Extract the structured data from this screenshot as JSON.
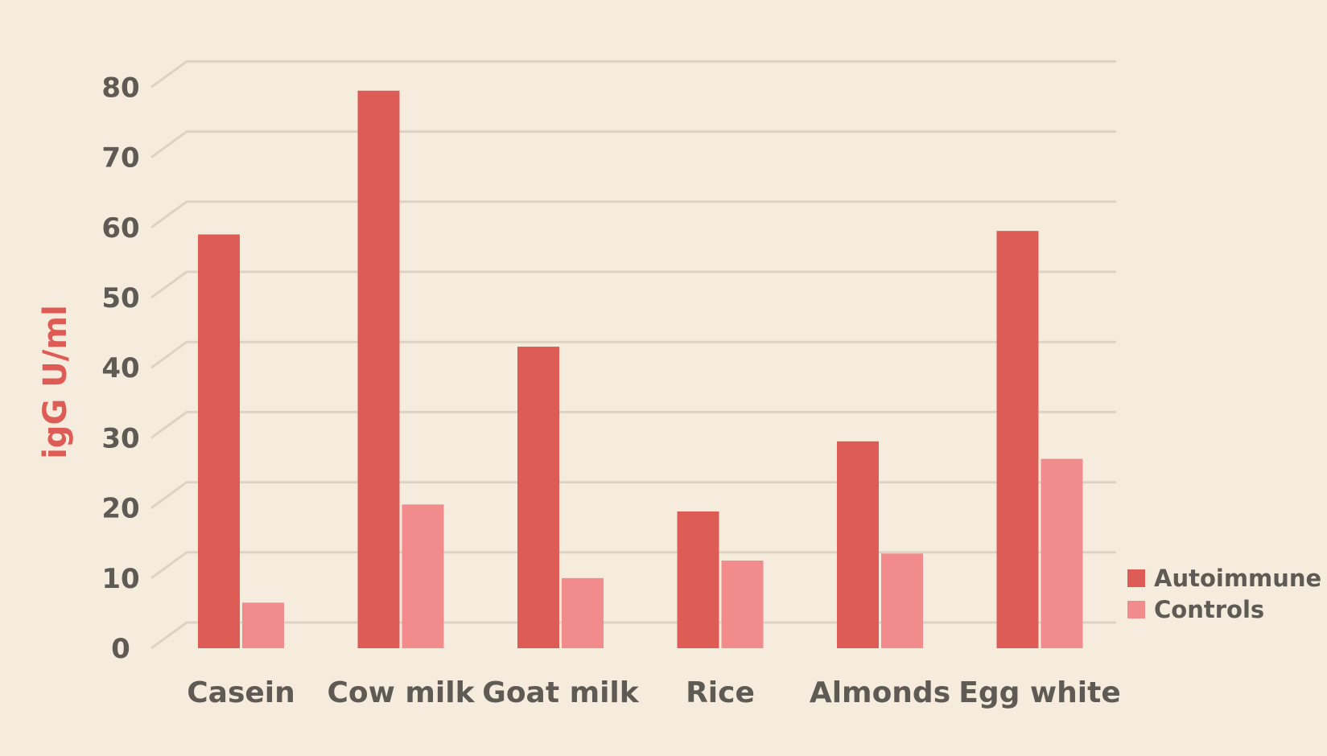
{
  "chart_data": {
    "type": "bar",
    "title": "",
    "xlabel": "",
    "ylabel": "igG U/ml",
    "ylim": [
      0,
      80
    ],
    "yticks": [
      0,
      10,
      20,
      30,
      40,
      50,
      60,
      70,
      80
    ],
    "grid": true,
    "categories": [
      "Casein",
      "Cow milk",
      "Goat milk",
      "Rice",
      "Almonds",
      "Egg white"
    ],
    "series": [
      {
        "name": "Autoimmune",
        "color": "#dd5c56",
        "values": [
          59,
          79.5,
          43,
          19.5,
          29.5,
          59.5
        ]
      },
      {
        "name": "Controls",
        "color": "#f28c8c",
        "values": [
          6.5,
          20.5,
          10,
          12.5,
          13.5,
          27
        ]
      }
    ],
    "legend_position": "bottom-right"
  }
}
